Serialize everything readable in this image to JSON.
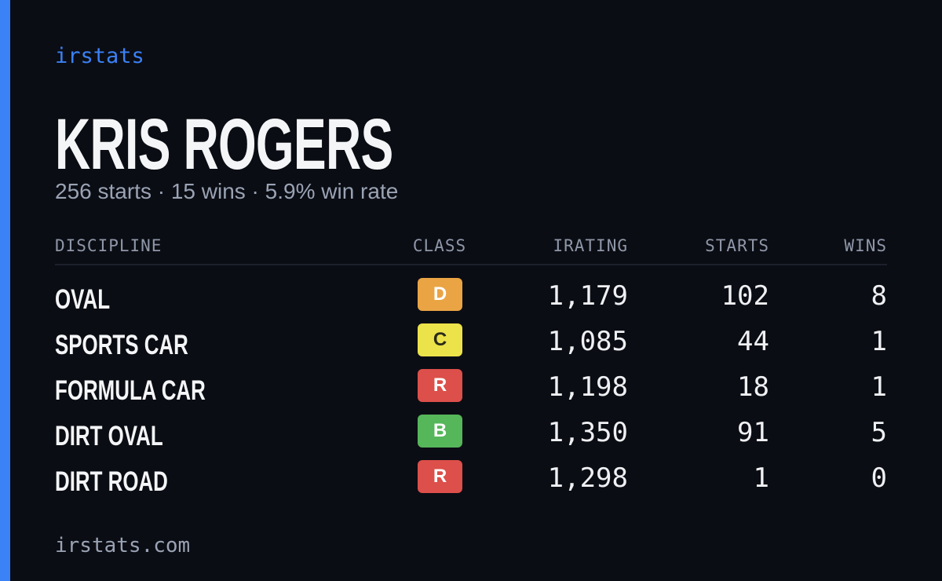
{
  "brand": "irstats",
  "name": "KRIS ROGERS",
  "subtitle": "256 starts · 15 wins · 5.9% win rate",
  "table": {
    "headers": [
      "DISCIPLINE",
      "CLASS",
      "IRATING",
      "STARTS",
      "WINS"
    ],
    "rows": [
      {
        "discipline": "OVAL",
        "class": "D",
        "class_color": "#eaa444",
        "irating": "1,179",
        "starts": "102",
        "wins": "8"
      },
      {
        "discipline": "SPORTS CAR",
        "class": "C",
        "class_color": "#ece24a",
        "irating": "1,085",
        "starts": "44",
        "wins": "1"
      },
      {
        "discipline": "FORMULA CAR",
        "class": "R",
        "class_color": "#dc4f4a",
        "irating": "1,198",
        "starts": "18",
        "wins": "1"
      },
      {
        "discipline": "DIRT OVAL",
        "class": "B",
        "class_color": "#56b65a",
        "irating": "1,350",
        "starts": "91",
        "wins": "5"
      },
      {
        "discipline": "DIRT ROAD",
        "class": "R",
        "class_color": "#dc4f4a",
        "irating": "1,298",
        "starts": "1",
        "wins": "0"
      }
    ]
  },
  "footer": "irstats.com"
}
